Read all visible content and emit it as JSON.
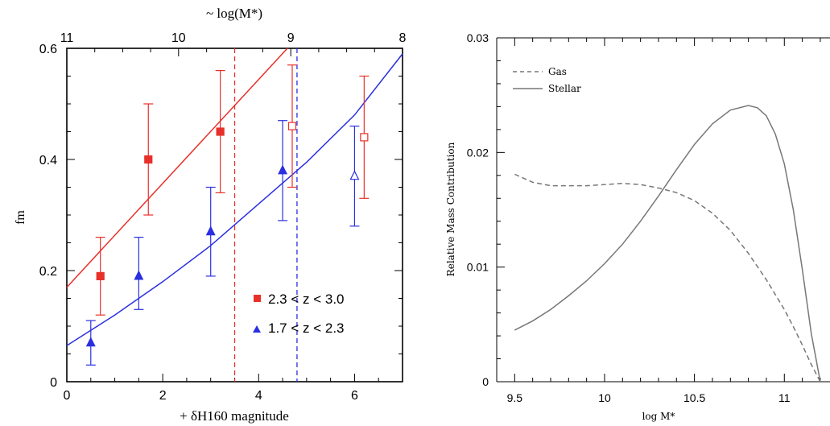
{
  "chart_data": [
    {
      "type": "scatter",
      "top_axis_label": "~ log(M*)",
      "xlabel": "+ δH160 magnitude",
      "ylabel": "fm",
      "xlim": [
        0,
        7
      ],
      "ylim": [
        0,
        0.6
      ],
      "x_ticks": [
        "0",
        "2",
        "4",
        "6"
      ],
      "y_ticks": [
        "0",
        "0.2",
        "0.4",
        "0.6"
      ],
      "top_ticks": [
        "11",
        "10",
        "9",
        "8"
      ],
      "top_tick_positions": [
        0,
        2.33,
        4.67,
        7
      ],
      "series": [
        {
          "name": "2.3 < z < 3.0",
          "color": "#e8302a",
          "marker": "square",
          "points": [
            {
              "x": 0.7,
              "y": 0.19,
              "lo": 0.12,
              "hi": 0.26,
              "filled": true
            },
            {
              "x": 1.7,
              "y": 0.4,
              "lo": 0.3,
              "hi": 0.5,
              "filled": true
            },
            {
              "x": 3.2,
              "y": 0.45,
              "lo": 0.34,
              "hi": 0.56,
              "filled": true
            },
            {
              "x": 4.7,
              "y": 0.46,
              "lo": 0.35,
              "hi": 0.57,
              "filled": false
            },
            {
              "x": 6.2,
              "y": 0.44,
              "lo": 0.33,
              "hi": 0.55,
              "filled": false
            }
          ],
          "fit_line": {
            "x0": 0,
            "y0": 0.17,
            "x1": 4.6,
            "y1": 0.6
          }
        },
        {
          "name": "1.7 < z < 2.3",
          "color": "#2b2fe0",
          "marker": "triangle",
          "points": [
            {
              "x": 0.5,
              "y": 0.07,
              "lo": 0.03,
              "hi": 0.11,
              "filled": true
            },
            {
              "x": 1.5,
              "y": 0.19,
              "lo": 0.13,
              "hi": 0.26,
              "filled": true
            },
            {
              "x": 3.0,
              "y": 0.27,
              "lo": 0.19,
              "hi": 0.35,
              "filled": true
            },
            {
              "x": 4.5,
              "y": 0.38,
              "lo": 0.29,
              "hi": 0.47,
              "filled": true
            },
            {
              "x": 6.0,
              "y": 0.37,
              "lo": 0.28,
              "hi": 0.46,
              "filled": false
            }
          ],
          "fit_curve": {
            "x": [
              0,
              1,
              2,
              3,
              4,
              5,
              6,
              7
            ],
            "y": [
              0.065,
              0.12,
              0.18,
              0.245,
              0.32,
              0.395,
              0.48,
              0.59
            ]
          }
        }
      ],
      "vlines": [
        {
          "x": 3.5,
          "color": "#e8302a",
          "style": "dashed"
        },
        {
          "x": 4.8,
          "color": "#2b2fe0",
          "style": "dashed"
        }
      ],
      "legend_position": "bottom-right",
      "legend": [
        {
          "label": "2.3 < z < 3.0",
          "color": "#e8302a",
          "marker": "square"
        },
        {
          "label": "1.7 < z < 2.3",
          "color": "#2b2fe0",
          "marker": "triangle"
        }
      ]
    },
    {
      "type": "line",
      "xlabel": "log M*",
      "ylabel": "Relative Mass Contribution",
      "xlim": [
        9.4,
        11.25
      ],
      "ylim": [
        0,
        0.03
      ],
      "x_ticks": [
        "9.5",
        "10",
        "10.5",
        "11"
      ],
      "y_ticks": [
        "0",
        "0.01",
        "0.02",
        "0.03"
      ],
      "legend_position": "top-left",
      "series": [
        {
          "name": "Gas",
          "style": "dashed",
          "color": "#777777",
          "x": [
            9.5,
            9.6,
            9.7,
            9.8,
            9.9,
            10.0,
            10.1,
            10.2,
            10.3,
            10.4,
            10.5,
            10.6,
            10.7,
            10.8,
            10.9,
            11.0,
            11.05,
            11.1,
            11.15,
            11.2
          ],
          "y": [
            0.0181,
            0.0174,
            0.0171,
            0.0171,
            0.0171,
            0.0172,
            0.0173,
            0.0172,
            0.0169,
            0.0165,
            0.0158,
            0.0147,
            0.0132,
            0.0112,
            0.0089,
            0.0063,
            0.0048,
            0.0032,
            0.0015,
            0.0
          ]
        },
        {
          "name": "Stellar",
          "style": "solid",
          "color": "#777777",
          "x": [
            9.5,
            9.6,
            9.7,
            9.8,
            9.9,
            10.0,
            10.1,
            10.2,
            10.3,
            10.4,
            10.5,
            10.6,
            10.7,
            10.8,
            10.85,
            10.9,
            10.95,
            11.0,
            11.05,
            11.1,
            11.15,
            11.2
          ],
          "y": [
            0.0045,
            0.0053,
            0.0063,
            0.0075,
            0.0088,
            0.0103,
            0.012,
            0.014,
            0.0162,
            0.0185,
            0.0207,
            0.0225,
            0.0237,
            0.0241,
            0.0239,
            0.0232,
            0.0216,
            0.019,
            0.015,
            0.0098,
            0.0042,
            0.0
          ]
        }
      ]
    }
  ]
}
